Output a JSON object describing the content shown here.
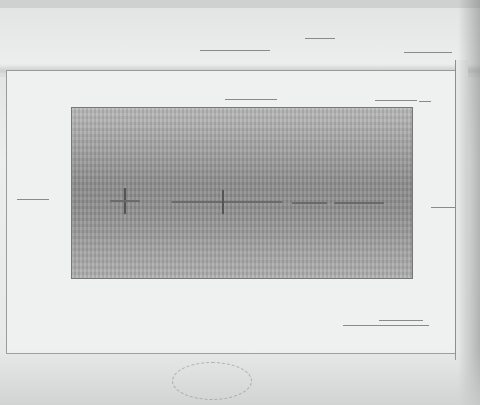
{
  "document": {
    "top_header_text": "",
    "top_right_text": "",
    "sheet_header_text": "",
    "sheet_right_text": ""
  },
  "colors": {
    "paper": "#eff0f0",
    "image_block": "#a3a3a3",
    "border": "#9a9c9c"
  }
}
